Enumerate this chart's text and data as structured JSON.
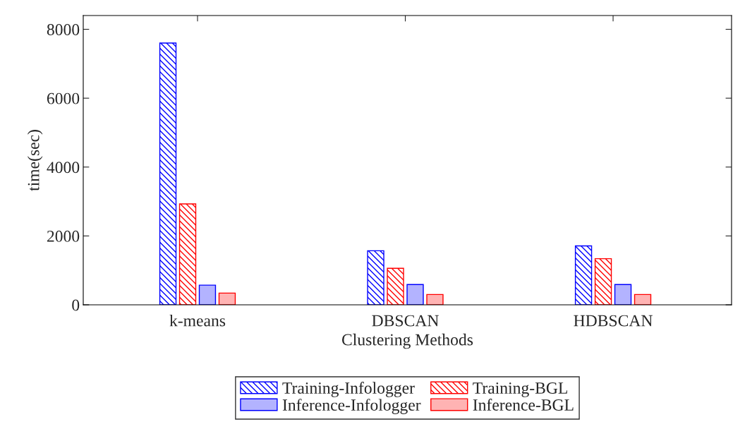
{
  "chart_data": {
    "type": "bar",
    "xlabel": "Clustering Methods",
    "ylabel": "time(sec)",
    "categories": [
      "k-means",
      "DBSCAN",
      "HDBSCAN"
    ],
    "series": [
      {
        "name": "Training-Infologger",
        "color": "#0000ff",
        "values": [
          7600,
          1570,
          1710
        ]
      },
      {
        "name": "Training-BGL",
        "color": "#ff0000",
        "values": [
          2930,
          1060,
          1340
        ]
      },
      {
        "name": "Inference-Infologger",
        "color": "#b3b3ff",
        "values": [
          570,
          590,
          590
        ]
      },
      {
        "name": "Inference-BGL",
        "color": "#ffb3b3",
        "values": [
          340,
          300,
          300
        ]
      }
    ],
    "ylim": [
      0,
      8400
    ],
    "yticks": [
      0,
      2000,
      4000,
      6000,
      8000
    ],
    "grid": false,
    "legend": "bottom"
  }
}
